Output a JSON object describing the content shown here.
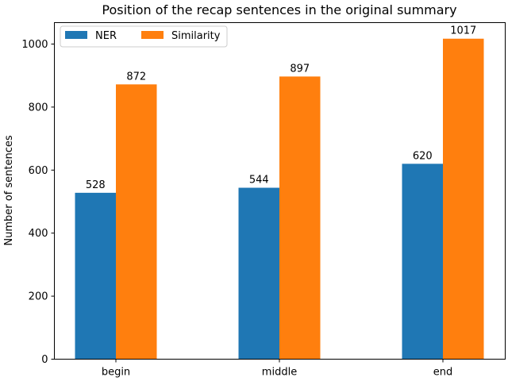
{
  "chart_data": {
    "type": "bar",
    "title": "Position of the recap sentences in the original summary",
    "xlabel": "",
    "ylabel": "Number of sentences",
    "categories": [
      "begin",
      "middle",
      "end"
    ],
    "series": [
      {
        "name": "NER",
        "values": [
          528,
          544,
          620
        ],
        "color": "#1f77b4"
      },
      {
        "name": "Similarity",
        "values": [
          872,
          897,
          1017
        ],
        "color": "#ff7f0e"
      }
    ],
    "ylim": [
      0,
      1068
    ],
    "yticks": [
      0,
      200,
      400,
      600,
      800,
      1000
    ],
    "legend_position": "top-left",
    "grid": false
  }
}
